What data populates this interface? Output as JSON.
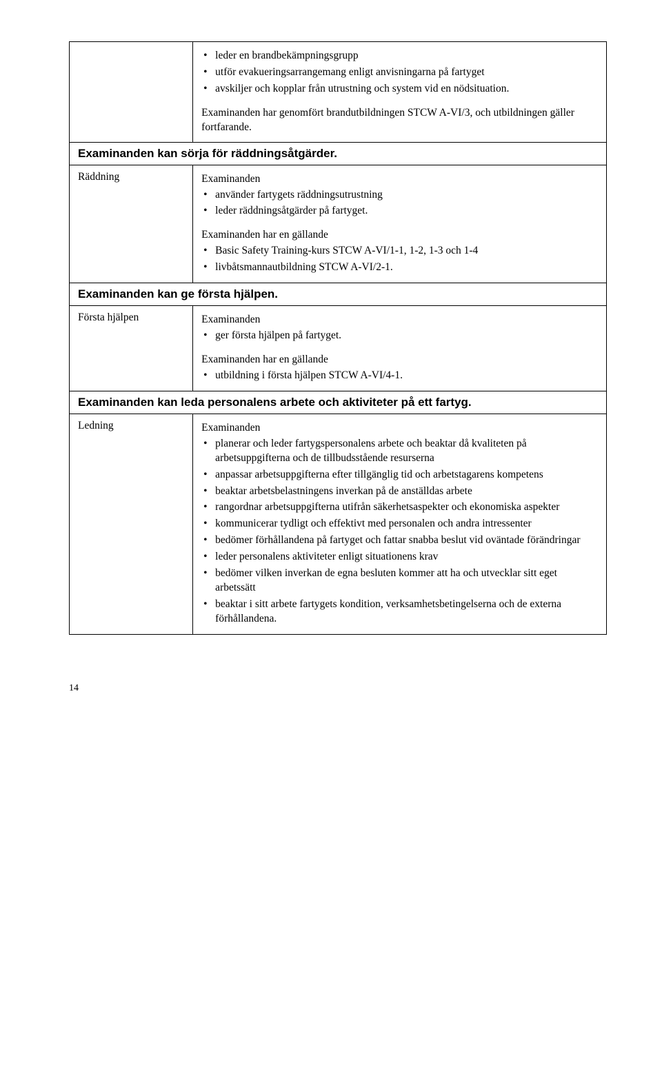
{
  "block1": {
    "items": [
      "leder en brandbekämpningsgrupp",
      "utför evakueringsarrangemang enligt anvisningarna på fartyget",
      "avskiljer och kopplar från utrustning och system vid en nödsituation."
    ],
    "trailing": "Examinanden har genomfört brandutbildningen STCW A-VI/3, och utbildningen gäller fortfarande."
  },
  "heading1": "Examinanden kan sörja för räddningsåtgärder.",
  "block2": {
    "label": "Räddning",
    "lead": "Examinanden",
    "items": [
      "använder fartygets räddningsutrustning",
      "leder räddningsåtgärder på fartyget."
    ],
    "trailingLead": "Examinanden har en gällande",
    "trailingItems": [
      "Basic Safety Training-kurs STCW A-VI/1-1, 1-2, 1-3 och 1-4",
      "livbåtsmannautbildning STCW A-VI/2-1."
    ]
  },
  "heading2": "Examinanden kan ge första hjälpen.",
  "block3": {
    "label": "Första hjälpen",
    "lead": "Examinanden",
    "items": [
      "ger första hjälpen på fartyget."
    ],
    "trailingLead": "Examinanden har en gällande",
    "trailingItems": [
      "utbildning i första hjälpen STCW A-VI/4-1."
    ]
  },
  "heading3": "Examinanden kan leda personalens arbete och aktiviteter på ett fartyg.",
  "block4": {
    "label": "Ledning",
    "lead": "Examinanden",
    "items": [
      "planerar och leder fartygspersonalens arbete och beaktar då kvaliteten på arbetsuppgifterna och de tillbudsstående resurserna",
      "anpassar arbetsuppgifterna efter tillgänglig tid och arbetstagarens kompetens",
      "beaktar arbetsbelastningens inverkan på de anställdas arbete",
      "rangordnar arbetsuppgifterna utifrån säkerhetsaspekter och ekonomiska aspekter",
      "kommunicerar tydligt och effektivt med personalen och andra intressenter",
      "bedömer förhållandena på fartyget och fattar snabba beslut vid oväntade förändringar",
      "leder personalens aktiviteter enligt situationens krav",
      "bedömer vilken inverkan de egna besluten kommer att ha och utvecklar sitt eget arbetssätt",
      "beaktar i sitt arbete fartygets kondition, verksamhetsbetingelserna och de externa förhållandena."
    ]
  },
  "pageNumber": "14"
}
